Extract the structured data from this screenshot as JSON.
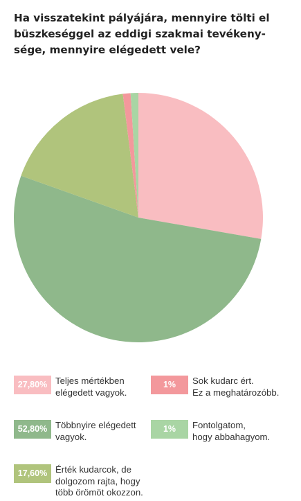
{
  "title_lines": [
    "Ha visszatekint pályájára, mennyire tölti el",
    "büszkeséggel az eddigi szakmai tevékeny-",
    "sége, mennyire elégedett vele?"
  ],
  "colors": {
    "teljes": "#f9bdc1",
    "sok_kudarc": "#f3989c",
    "tobbnyire": "#8fb88b",
    "fontolgatom": "#a9d5a4",
    "ertek": "#b0c47c"
  },
  "chart_data": {
    "type": "pie",
    "title": "Ha visszatekint pályájára, mennyire tölti el büszkeséggel az eddigi szakmai tevékenysége, mennyire elégedett vele?",
    "slices": [
      {
        "key": "teljes",
        "label": "Teljes mértékben elégedett vagyok.",
        "value": 27.8,
        "display": "27,80%"
      },
      {
        "key": "tobbnyire",
        "label": "Többnyire elégedett vagyok.",
        "value": 52.8,
        "display": "52,80%"
      },
      {
        "key": "ertek",
        "label": "Érték kudarcok, de dolgozom rajta, hogy több örömöt okozzon.",
        "value": 17.6,
        "display": "17,60%"
      },
      {
        "key": "sok_kudarc",
        "label": "Sok kudarc ért. Ez a meghatározóbb.",
        "value": 1,
        "display": "1%"
      },
      {
        "key": "fontolgatom",
        "label": "Fontolgatom, hogy abbahagyom.",
        "value": 1,
        "display": "1%"
      }
    ]
  },
  "legend": [
    {
      "key": "teljes",
      "value": "27,80%",
      "lines": [
        "Teljes mértékben",
        "elégedett vagyok."
      ]
    },
    {
      "key": "sok_kudarc",
      "value": "1%",
      "lines": [
        "Sok kudarc ért.",
        "Ez a meghatározóbb."
      ]
    },
    {
      "key": "tobbnyire",
      "value": "52,80%",
      "lines": [
        "Többnyire elégedett",
        "vagyok."
      ]
    },
    {
      "key": "fontolgatom",
      "value": "1%",
      "lines": [
        "Fontolgatom,",
        "hogy abbahagyom."
      ]
    },
    {
      "key": "ertek",
      "value": "17,60%",
      "lines": [
        "Érték kudarcok, de",
        "dolgozom rajta, hogy",
        "több örömöt okozzon."
      ]
    }
  ]
}
